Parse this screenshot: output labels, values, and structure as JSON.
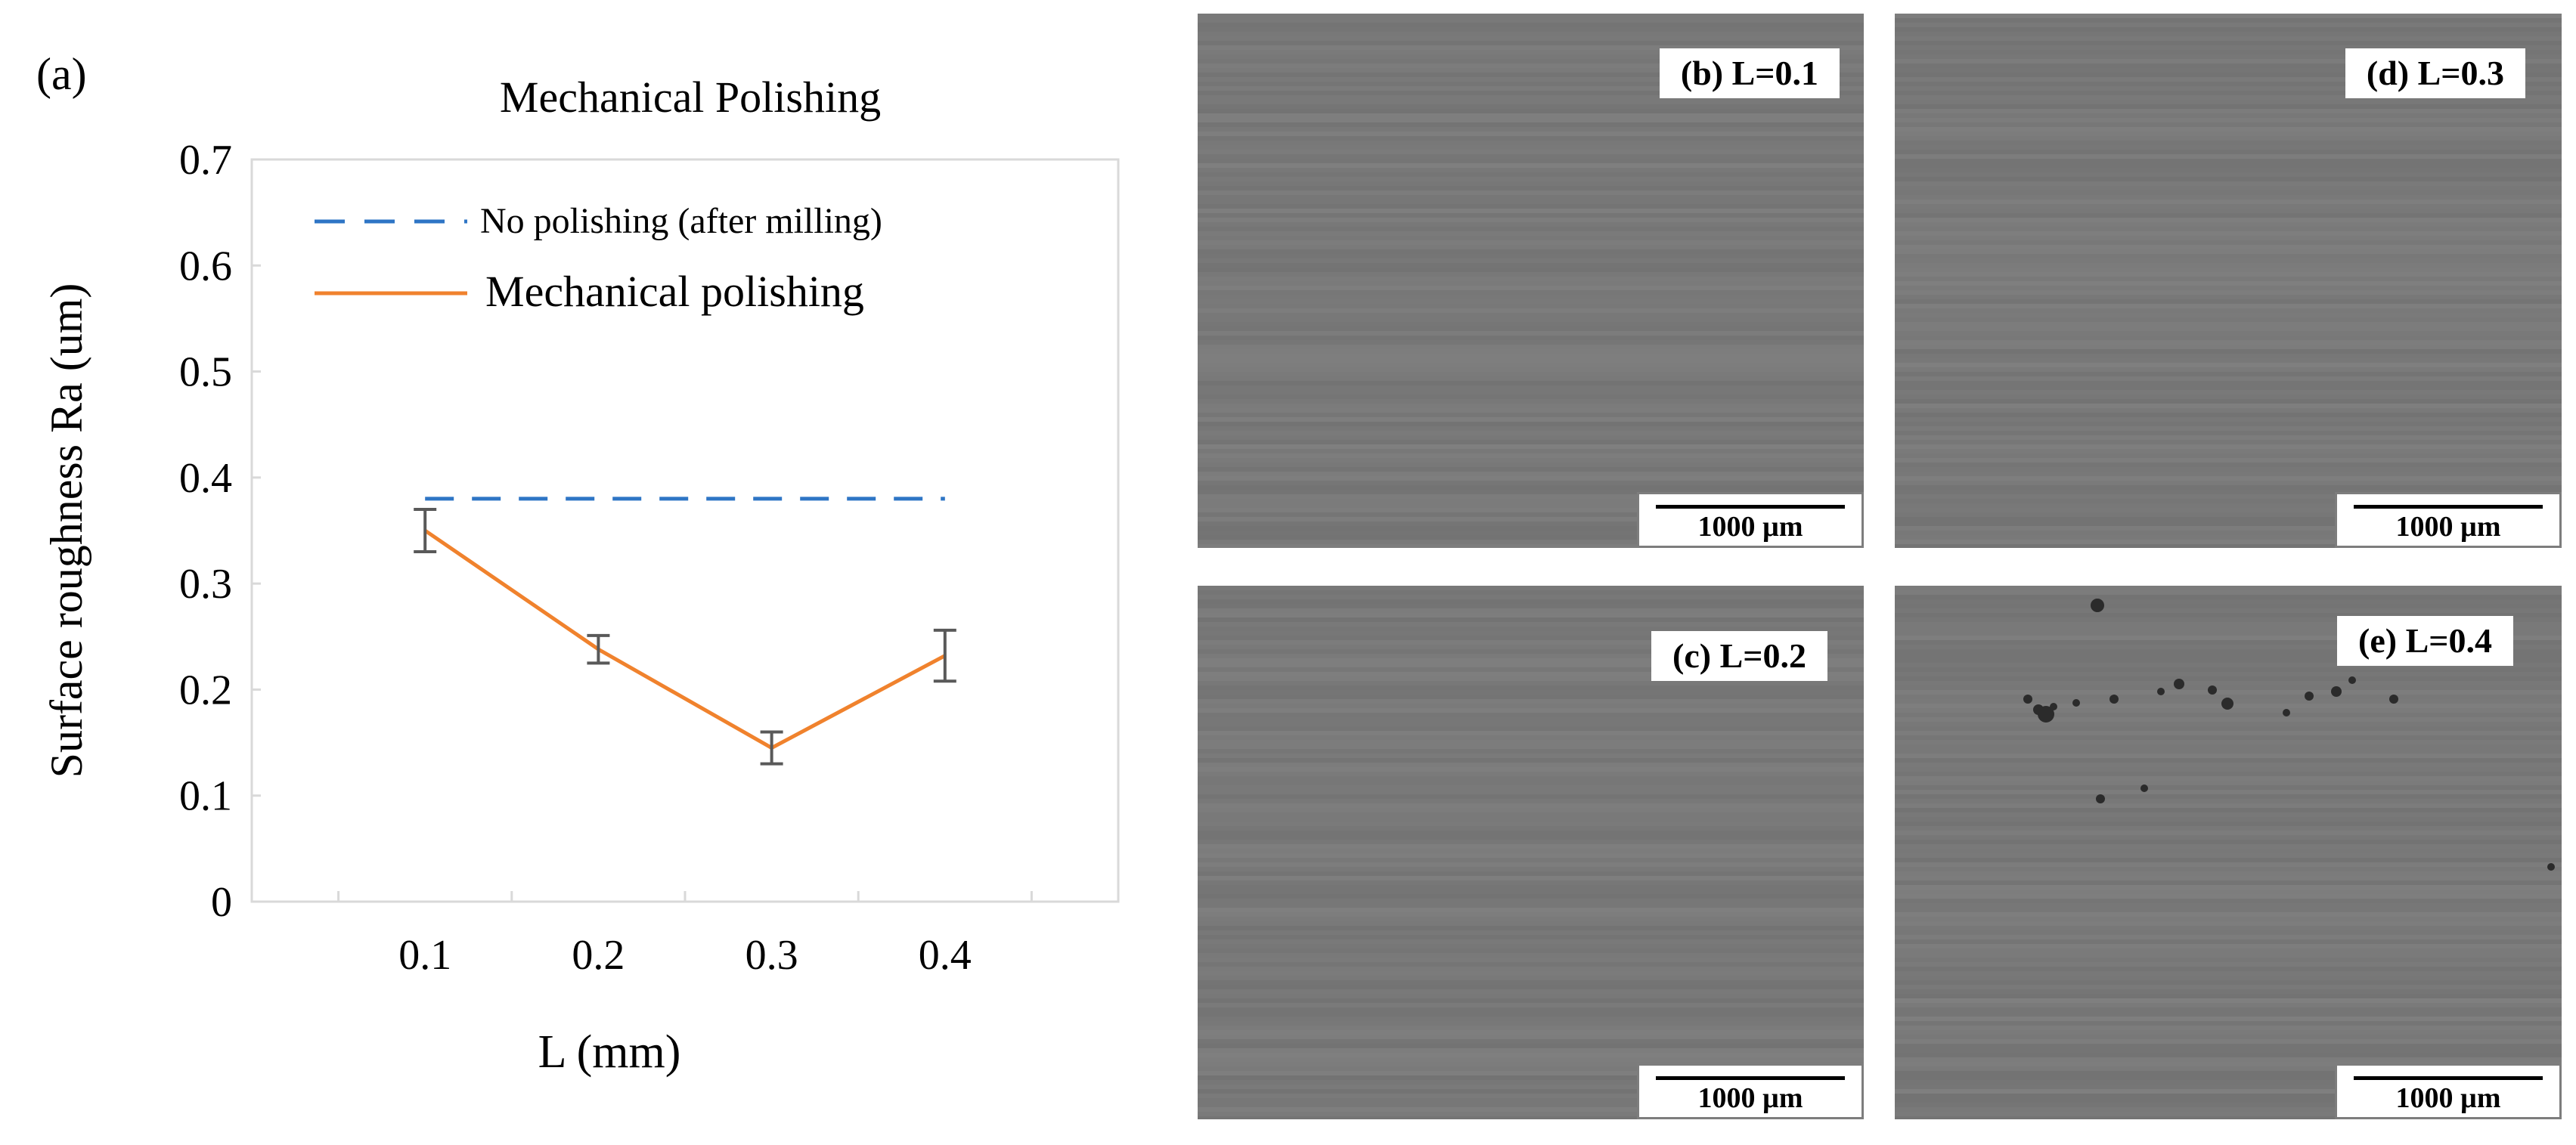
{
  "panel_a_label": "(a)",
  "chart_data": {
    "type": "line",
    "title": "Mechanical Polishing",
    "xlabel": "L (mm)",
    "ylabel": "Surface roughness Ra (um)",
    "categories": [
      "0.1",
      "0.2",
      "0.3",
      "0.4"
    ],
    "x": [
      0.1,
      0.2,
      0.3,
      0.4
    ],
    "xlim": [
      0.0,
      0.5
    ],
    "ylim": [
      0,
      0.7
    ],
    "yticks": [
      0,
      0.1,
      0.2,
      0.3,
      0.4,
      0.5,
      0.6,
      0.7
    ],
    "ytick_labels": [
      "0",
      "0.1",
      "0.2",
      "0.3",
      "0.4",
      "0.5",
      "0.6",
      "0.7"
    ],
    "legend_position": "top",
    "series": [
      {
        "name": "No polishing (after milling)",
        "values": [
          0.38,
          0.38,
          0.38,
          0.38
        ],
        "color": "#2e75c5",
        "style": "dashed"
      },
      {
        "name": "Mechanical polishing",
        "values": [
          0.35,
          0.238,
          0.145,
          0.232
        ],
        "error": [
          0.02,
          0.013,
          0.015,
          0.024
        ],
        "color": "#f0822d",
        "style": "solid"
      }
    ]
  },
  "micrographs": [
    {
      "label": "(b) L=0.1",
      "scale_bar": "1000 µm"
    },
    {
      "label": "(d) L=0.3",
      "scale_bar": "1000 µm"
    },
    {
      "label": "(c) L=0.2",
      "scale_bar": "1000 µm"
    },
    {
      "label": "(e) L=0.4",
      "scale_bar": "1000 µm"
    }
  ],
  "colors": {
    "micrograph_base": "#7c7c7c",
    "error_bar": "#595959",
    "frame": "#d9d9d9"
  }
}
